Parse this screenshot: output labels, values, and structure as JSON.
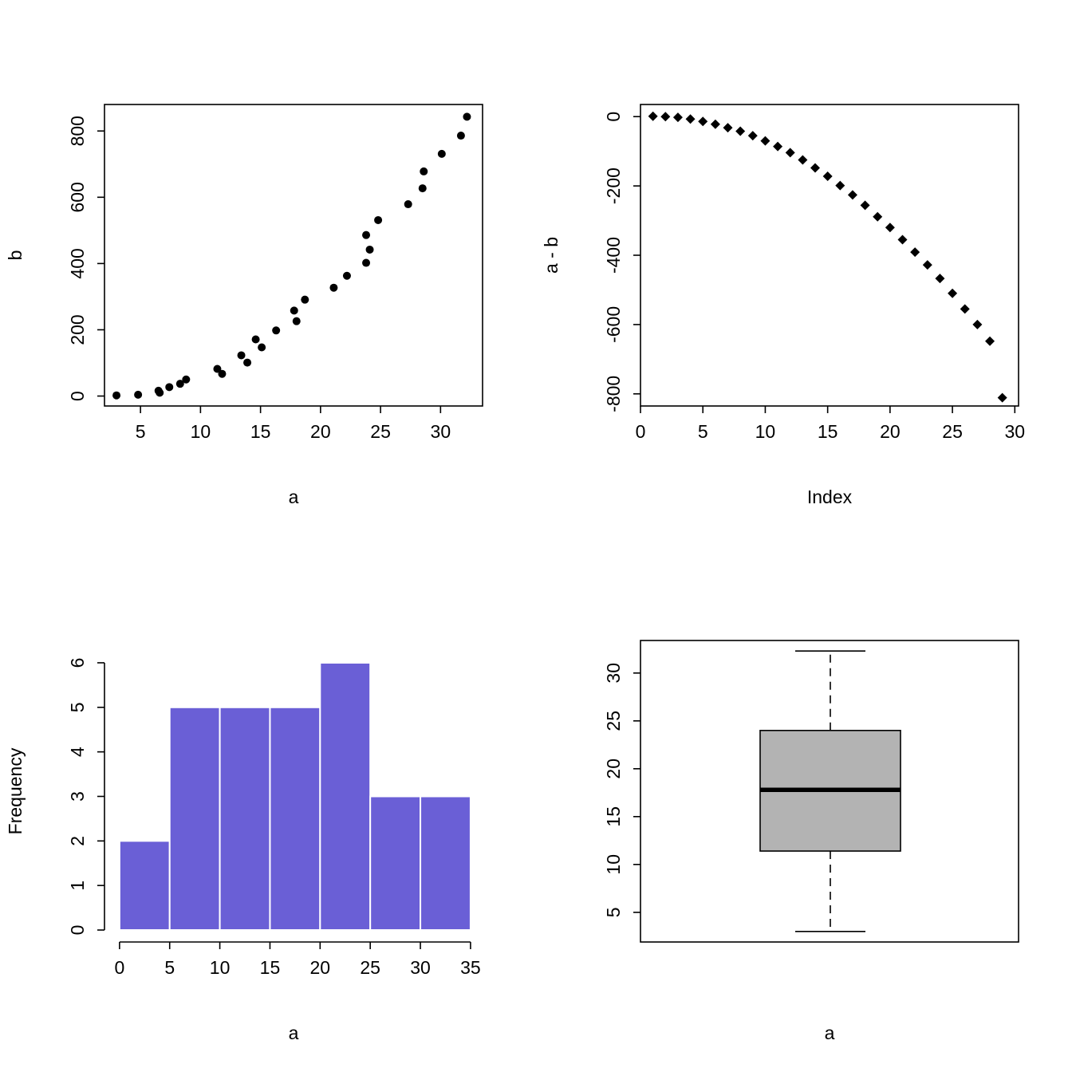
{
  "chart_data": [
    {
      "id": "scatter-a-b",
      "type": "scatter",
      "xlabel": "a",
      "ylabel": "b",
      "xlim": [
        2,
        33.5
      ],
      "ylim": [
        -30,
        880
      ],
      "xticks": [
        5,
        10,
        15,
        20,
        25,
        30
      ],
      "yticks": [
        0,
        200,
        400,
        600,
        800
      ],
      "marker": "circle",
      "points": [
        [
          3.0,
          2
        ],
        [
          4.8,
          4
        ],
        [
          6.5,
          16
        ],
        [
          6.6,
          10
        ],
        [
          7.4,
          27
        ],
        [
          8.3,
          37
        ],
        [
          8.8,
          50
        ],
        [
          11.4,
          82
        ],
        [
          11.8,
          67
        ],
        [
          13.4,
          123
        ],
        [
          13.9,
          101
        ],
        [
          14.6,
          171
        ],
        [
          15.1,
          147
        ],
        [
          16.3,
          198
        ],
        [
          17.8,
          258
        ],
        [
          18.0,
          226
        ],
        [
          18.7,
          291
        ],
        [
          21.1,
          327
        ],
        [
          22.2,
          363
        ],
        [
          23.8,
          402
        ],
        [
          23.8,
          486
        ],
        [
          24.1,
          442
        ],
        [
          24.8,
          531
        ],
        [
          27.3,
          579
        ],
        [
          28.5,
          627
        ],
        [
          28.6,
          678
        ],
        [
          30.1,
          731
        ],
        [
          31.7,
          786
        ],
        [
          32.2,
          843
        ]
      ]
    },
    {
      "id": "index-plot-a-minus-b",
      "type": "scatter",
      "xlabel": "Index",
      "ylabel": "a - b",
      "xlim": [
        0,
        30.3
      ],
      "ylim": [
        -835,
        35
      ],
      "xticks": [
        0,
        5,
        10,
        15,
        20,
        25,
        30
      ],
      "yticks": [
        0,
        -200,
        -400,
        -600,
        -800
      ],
      "marker": "diamond",
      "x": [
        1,
        2,
        3,
        4,
        5,
        6,
        7,
        8,
        9,
        10,
        11,
        12,
        13,
        14,
        15,
        16,
        17,
        18,
        19,
        20,
        21,
        22,
        23,
        24,
        25,
        26,
        27,
        28,
        29
      ],
      "y": [
        1,
        0,
        -2,
        -7,
        -14,
        -22,
        -32,
        -42,
        -55,
        -70,
        -86,
        -104,
        -125,
        -148,
        -172,
        -199,
        -226,
        -256,
        -289,
        -320,
        -355,
        -391,
        -428,
        -467,
        -510,
        -555,
        -600,
        -648,
        -811
      ]
    },
    {
      "id": "histogram-a",
      "type": "bar",
      "xlabel": "a",
      "ylabel": "Frequency",
      "bins": [
        [
          0,
          5
        ],
        [
          5,
          10
        ],
        [
          10,
          15
        ],
        [
          15,
          20
        ],
        [
          20,
          25
        ],
        [
          25,
          30
        ],
        [
          30,
          35
        ]
      ],
      "values": [
        2,
        5,
        5,
        5,
        6,
        3,
        3
      ],
      "xlim": [
        -1.5,
        36.2
      ],
      "ylim": [
        0,
        6.25
      ],
      "xticks": [
        0,
        5,
        10,
        15,
        20,
        25,
        30,
        35
      ],
      "yticks": [
        0,
        1,
        2,
        3,
        4,
        5,
        6
      ],
      "bar_color": "#6a5fd6",
      "border_color": "#ffffff"
    },
    {
      "id": "boxplot-a",
      "type": "box",
      "xlabel": "a",
      "stats": {
        "min": 3.0,
        "q1": 11.4,
        "median": 17.8,
        "q3": 24.0,
        "max": 32.3
      },
      "ylim": [
        1.9,
        33.4
      ],
      "yticks": [
        5,
        10,
        15,
        20,
        25,
        30
      ],
      "box_color": "#b3b3b3"
    }
  ]
}
